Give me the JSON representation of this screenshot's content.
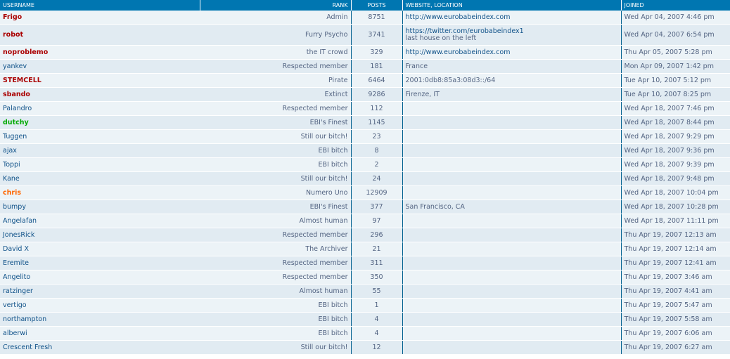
{
  "headers": {
    "username": "USERNAME",
    "rank": "RANK",
    "posts": "POSTS",
    "website": "WEBSITE, LOCATION",
    "joined": "JOINED"
  },
  "colors": {
    "header_bg": "#0076b1",
    "row_bg1": "#ecf3f7",
    "row_bg2": "#e1ebf2",
    "link": "#105289",
    "admin": "#aa0000",
    "green": "#00aa00",
    "orange": "#ff6600"
  },
  "members": [
    {
      "username": "Frigo",
      "rank": "Admin",
      "posts": "8751",
      "website": "http://www.eurobabeindex.com",
      "location": "",
      "joined": "Wed Apr 04, 2007 4:46 pm"
    },
    {
      "username": "robot",
      "rank": "Furry Psycho",
      "posts": "3741",
      "website": "https://twitter.com/eurobabeindex1",
      "location": "last house on the left",
      "joined": "Wed Apr 04, 2007 6:54 pm"
    },
    {
      "username": "noproblemo",
      "rank": "the IT crowd",
      "posts": "329",
      "website": "http://www.eurobabeindex.com",
      "location": "",
      "joined": "Thu Apr 05, 2007 5:28 pm"
    },
    {
      "username": "yankev",
      "rank": "Respected member",
      "posts": "181",
      "website": "",
      "location": "France",
      "joined": "Mon Apr 09, 2007 1:42 pm"
    },
    {
      "username": "STEMCELL",
      "rank": "Pirate",
      "posts": "6464",
      "website": "",
      "location": "2001:0db8:85a3:08d3::/64",
      "joined": "Tue Apr 10, 2007 5:12 pm"
    },
    {
      "username": "sbando",
      "rank": "Extinct",
      "posts": "9286",
      "website": "",
      "location": "Firenze, IT",
      "joined": "Tue Apr 10, 2007 8:25 pm"
    },
    {
      "username": "Palandro",
      "rank": "Respected member",
      "posts": "112",
      "website": "",
      "location": "",
      "joined": "Wed Apr 18, 2007 7:46 pm"
    },
    {
      "username": "dutchy",
      "rank": "EBI's Finest",
      "posts": "1145",
      "website": "",
      "location": "",
      "joined": "Wed Apr 18, 2007 8:44 pm"
    },
    {
      "username": "Tuggen",
      "rank": "Still our bitch!",
      "posts": "23",
      "website": "",
      "location": "",
      "joined": "Wed Apr 18, 2007 9:29 pm"
    },
    {
      "username": "ajax",
      "rank": "EBI bitch",
      "posts": "8",
      "website": "",
      "location": "",
      "joined": "Wed Apr 18, 2007 9:36 pm"
    },
    {
      "username": "Toppi",
      "rank": "EBI bitch",
      "posts": "2",
      "website": "",
      "location": "",
      "joined": "Wed Apr 18, 2007 9:39 pm"
    },
    {
      "username": "Kane",
      "rank": "Still our bitch!",
      "posts": "24",
      "website": "",
      "location": "",
      "joined": "Wed Apr 18, 2007 9:48 pm"
    },
    {
      "username": "chris",
      "rank": "Numero Uno",
      "posts": "12909",
      "website": "",
      "location": "",
      "joined": "Wed Apr 18, 2007 10:04 pm"
    },
    {
      "username": "bumpy",
      "rank": "EBI's Finest",
      "posts": "377",
      "website": "",
      "location": "San Francisco, CA",
      "joined": "Wed Apr 18, 2007 10:28 pm"
    },
    {
      "username": "Angelafan",
      "rank": "Almost human",
      "posts": "97",
      "website": "",
      "location": "",
      "joined": "Wed Apr 18, 2007 11:11 pm"
    },
    {
      "username": "JonesRick",
      "rank": "Respected member",
      "posts": "296",
      "website": "",
      "location": "",
      "joined": "Thu Apr 19, 2007 12:13 am"
    },
    {
      "username": "David X",
      "rank": "The Archiver",
      "posts": "21",
      "website": "",
      "location": "",
      "joined": "Thu Apr 19, 2007 12:14 am"
    },
    {
      "username": "Eremite",
      "rank": "Respected member",
      "posts": "311",
      "website": "",
      "location": "",
      "joined": "Thu Apr 19, 2007 12:41 am"
    },
    {
      "username": "Angelito",
      "rank": "Respected member",
      "posts": "350",
      "website": "",
      "location": "",
      "joined": "Thu Apr 19, 2007 3:46 am"
    },
    {
      "username": "ratzinger",
      "rank": "Almost human",
      "posts": "55",
      "website": "",
      "location": "",
      "joined": "Thu Apr 19, 2007 4:41 am"
    },
    {
      "username": "vertigo",
      "rank": "EBI bitch",
      "posts": "1",
      "website": "",
      "location": "",
      "joined": "Thu Apr 19, 2007 5:47 am"
    },
    {
      "username": "northampton",
      "rank": "EBI bitch",
      "posts": "4",
      "website": "",
      "location": "",
      "joined": "Thu Apr 19, 2007 5:58 am"
    },
    {
      "username": "alberwi",
      "rank": "EBI bitch",
      "posts": "4",
      "website": "",
      "location": "",
      "joined": "Thu Apr 19, 2007 6:06 am"
    },
    {
      "username": "Crescent Fresh",
      "rank": "Still our bitch!",
      "posts": "12",
      "website": "",
      "location": "",
      "joined": "Thu Apr 19, 2007 6:27 am"
    }
  ]
}
